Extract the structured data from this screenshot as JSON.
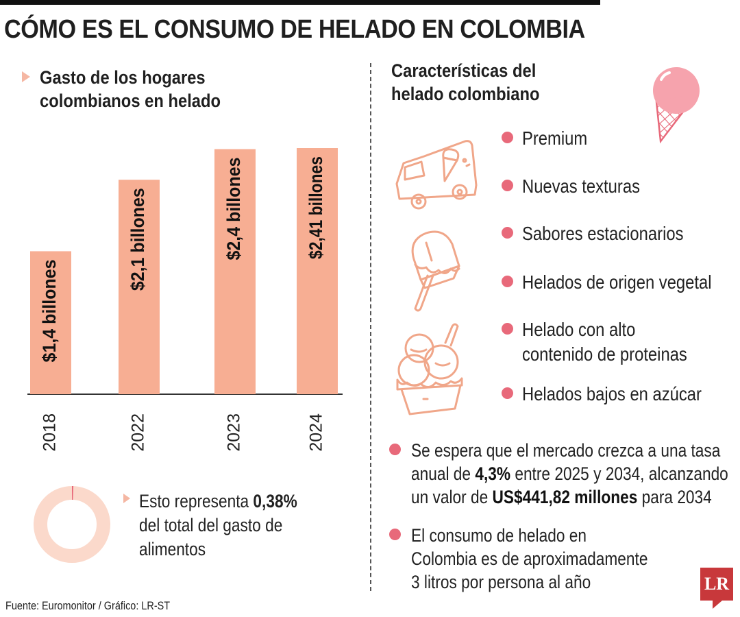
{
  "title": "CÓMO ES EL CONSUMO DE HELADO EN COLOMBIA",
  "left": {
    "subtitle_line1": "Gasto de los hogares",
    "subtitle_line2": "colombianos en helado",
    "share_prefix": "Esto representa ",
    "share_value": "0,38%",
    "share_line2": "del total del gasto de",
    "share_line3": "alimentos",
    "share_fraction": 0.0038
  },
  "chart_data": {
    "type": "bar",
    "title": "Gasto de los hogares colombianos en helado",
    "categories": [
      "2018",
      "2022",
      "2023",
      "2024"
    ],
    "values": [
      1.4,
      2.1,
      2.4,
      2.41
    ],
    "labels": [
      "$1,4 billones",
      "$2,1 billones",
      "$2,4 billones",
      "$2,41 billones"
    ],
    "unit": "billones de pesos",
    "ylim": [
      0,
      2.41
    ],
    "xlabel": "",
    "ylabel": "",
    "color": "#f7ae93"
  },
  "right": {
    "subtitle_line1": "Características del",
    "subtitle_line2": "helado colombiano",
    "features": [
      [
        "Premium"
      ],
      [
        "Nuevas texturas"
      ],
      [
        "Sabores estacionarios"
      ],
      [
        "Helados de origen vegetal"
      ],
      [
        "Helado con alto",
        "contenido de proteinas"
      ],
      [
        "Helados bajos en azúcar"
      ]
    ],
    "note1": {
      "line1": "Se espera que el mercado crezca a una tasa",
      "line2_a": "anual  de ",
      "line2_b": "4,3%",
      "line2_c": " entre 2025 y 2034, alcanzando",
      "line3_a": "un valor de ",
      "line3_b": "US$441,82 millones",
      "line3_c": " para 2034"
    },
    "note2": {
      "line1": "El consumo de helado en",
      "line2": "Colombia es de aproximadamente",
      "line3": "3 litros por persona al año"
    }
  },
  "source": "Fuente: Euromonitor / Gráfico: LR-ST",
  "logo": "LR",
  "colors": {
    "accent": "#e8697a",
    "bar": "#f7ae93",
    "icon": "#f0a689",
    "donut": "#fbd9cb",
    "brand": "#c8383b"
  },
  "icons": [
    "ice-cream-cone-icon",
    "ice-cream-truck-icon",
    "popsicle-icon",
    "ice-cream-cup-icon"
  ]
}
